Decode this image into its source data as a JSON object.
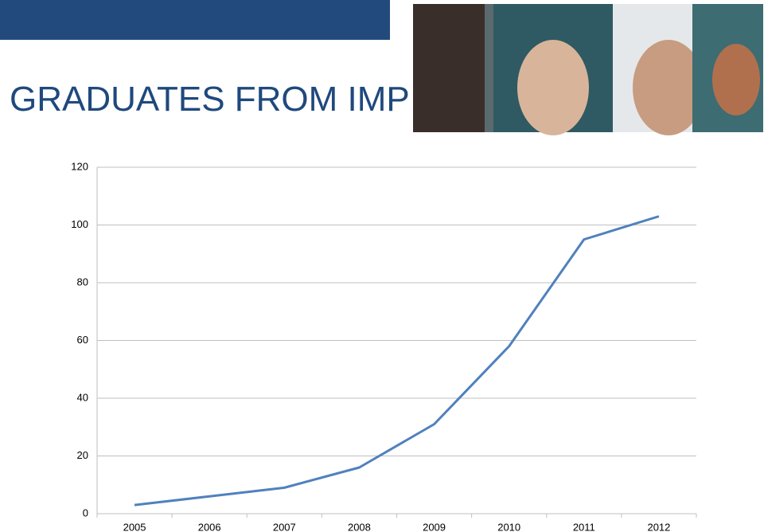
{
  "chart_data": {
    "type": "line",
    "title": "GRADUATES FROM IMP",
    "categories": [
      "2005",
      "2006",
      "2007",
      "2008",
      "2009",
      "2010",
      "2011",
      "2012"
    ],
    "series": [
      {
        "name": "Graduates",
        "color": "#4f81bd",
        "values": [
          3,
          6,
          9,
          16,
          31,
          58,
          95,
          103
        ]
      }
    ],
    "ylim": [
      0,
      120
    ],
    "yticks": [
      0,
      20,
      40,
      60,
      80,
      100,
      120
    ],
    "grid": true
  }
}
